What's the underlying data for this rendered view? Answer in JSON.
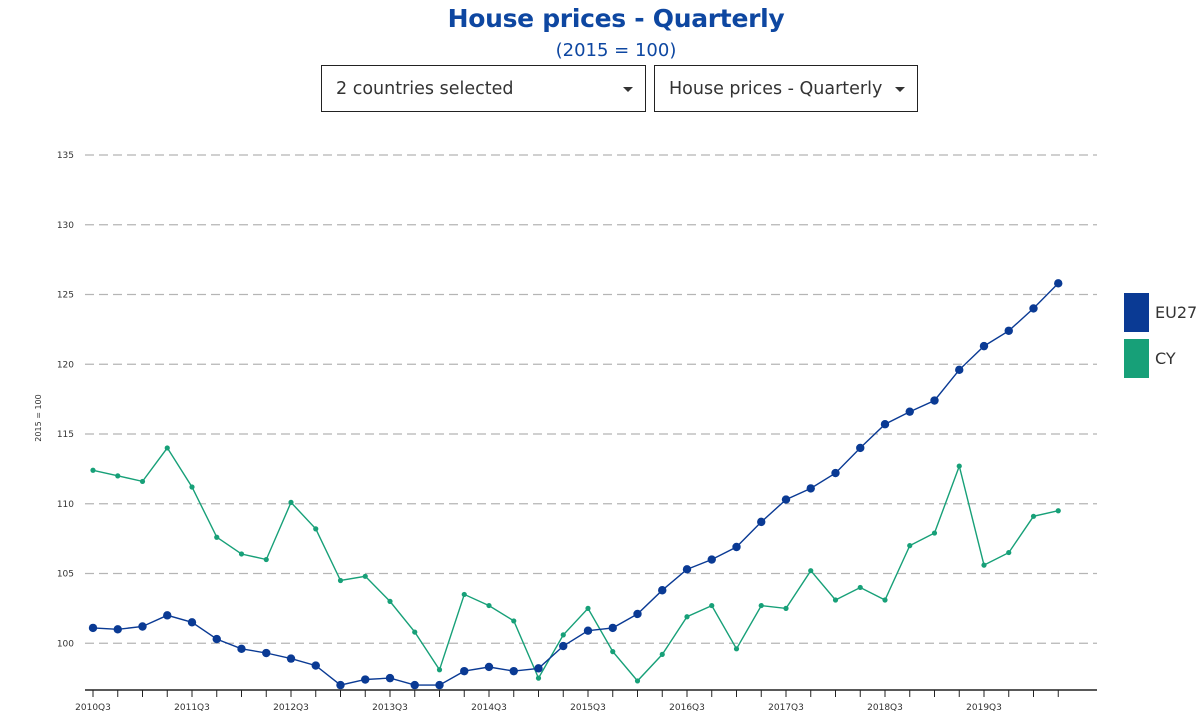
{
  "header": {
    "title": "House prices - Quarterly",
    "subtitle": "(2015 = 100)"
  },
  "controls": {
    "countries_label": "2 countries selected",
    "indicator_label": "House prices - Quarterly"
  },
  "colors": {
    "title": "#0e47a1",
    "eu27": "#0a3a94",
    "cy": "#17a078",
    "grid": "#b5b5b5"
  },
  "chart_data": {
    "type": "line",
    "title": "House prices - Quarterly",
    "subtitle": "(2015 = 100)",
    "xlabel": "",
    "ylabel": "2015 = 100",
    "ylim": [
      96.5,
      135
    ],
    "yticks": [
      100,
      105,
      110,
      115,
      120,
      125,
      130,
      135
    ],
    "grid": true,
    "legend_position": "right",
    "x": [
      "2010Q3",
      "2010Q4",
      "2011Q1",
      "2011Q2",
      "2011Q3",
      "2011Q4",
      "2012Q1",
      "2012Q2",
      "2012Q3",
      "2012Q4",
      "2013Q1",
      "2013Q2",
      "2013Q3",
      "2013Q4",
      "2014Q1",
      "2014Q2",
      "2014Q3",
      "2014Q4",
      "2015Q1",
      "2015Q2",
      "2015Q3",
      "2015Q4",
      "2016Q1",
      "2016Q2",
      "2016Q3",
      "2016Q4",
      "2017Q1",
      "2017Q2",
      "2017Q3",
      "2017Q4",
      "2018Q1",
      "2018Q2",
      "2018Q3",
      "2018Q4",
      "2019Q1",
      "2019Q2",
      "2019Q3",
      "2019Q4",
      "2020Q1",
      "2020Q2"
    ],
    "tick_labels": [
      "2010Q3",
      "2011Q3",
      "2012Q3",
      "2013Q3",
      "2014Q3",
      "2015Q3",
      "2016Q3",
      "2017Q3",
      "2018Q3",
      "2019Q3"
    ],
    "series": [
      {
        "name": "EU27",
        "values": [
          101.1,
          101.0,
          101.2,
          102.0,
          101.5,
          100.3,
          99.6,
          99.3,
          98.9,
          98.4,
          97.0,
          97.4,
          97.5,
          97.0,
          97.0,
          98.0,
          98.3,
          98.0,
          98.2,
          99.8,
          100.9,
          101.1,
          102.1,
          103.8,
          105.3,
          106.0,
          106.9,
          108.7,
          110.3,
          111.1,
          112.2,
          114.0,
          115.7,
          116.6,
          117.4,
          119.6,
          121.3,
          122.4,
          124.0,
          125.8
        ]
      },
      {
        "name": "CY",
        "values": [
          112.4,
          112.0,
          111.6,
          114.0,
          111.2,
          107.6,
          106.4,
          106.0,
          110.1,
          108.2,
          104.5,
          104.8,
          103.0,
          100.8,
          98.1,
          103.5,
          102.7,
          101.6,
          97.5,
          100.6,
          102.5,
          99.4,
          97.3,
          99.2,
          101.9,
          102.7,
          99.6,
          102.7,
          102.5,
          105.2,
          103.1,
          104.0,
          103.1,
          107.0,
          107.9,
          112.7,
          105.6,
          106.5,
          109.1,
          109.5
        ]
      }
    ]
  }
}
